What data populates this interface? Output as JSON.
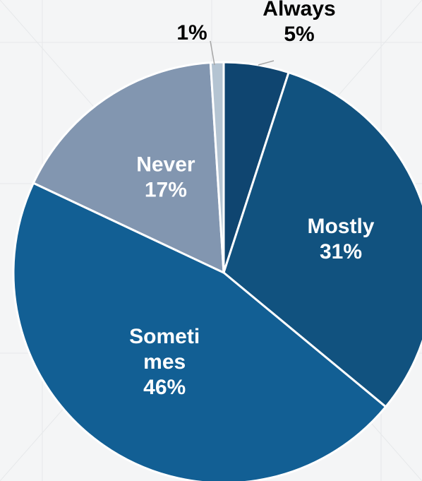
{
  "chart_data": {
    "type": "pie",
    "title": "",
    "slices": [
      {
        "name": "Always",
        "value": 5,
        "label": [
          "Always",
          "5%"
        ],
        "color": "#0f4570",
        "label_color": "#000000"
      },
      {
        "name": "Mostly",
        "value": 31,
        "label": [
          "Mostly",
          "31%"
        ],
        "color": "#11527f",
        "label_color": "#ffffff"
      },
      {
        "name": "Sometimes",
        "value": 46,
        "label": [
          "Someti",
          "mes",
          "46%"
        ],
        "color": "#125f94",
        "label_color": "#ffffff"
      },
      {
        "name": "Never",
        "value": 17,
        "label": [
          "Never",
          "17%"
        ],
        "color": "#8296b0",
        "label_color": "#ffffff"
      },
      {
        "name": "",
        "value": 1,
        "label": [
          "1%"
        ],
        "color": "#b4c4d2",
        "label_color": "#000000"
      }
    ]
  }
}
